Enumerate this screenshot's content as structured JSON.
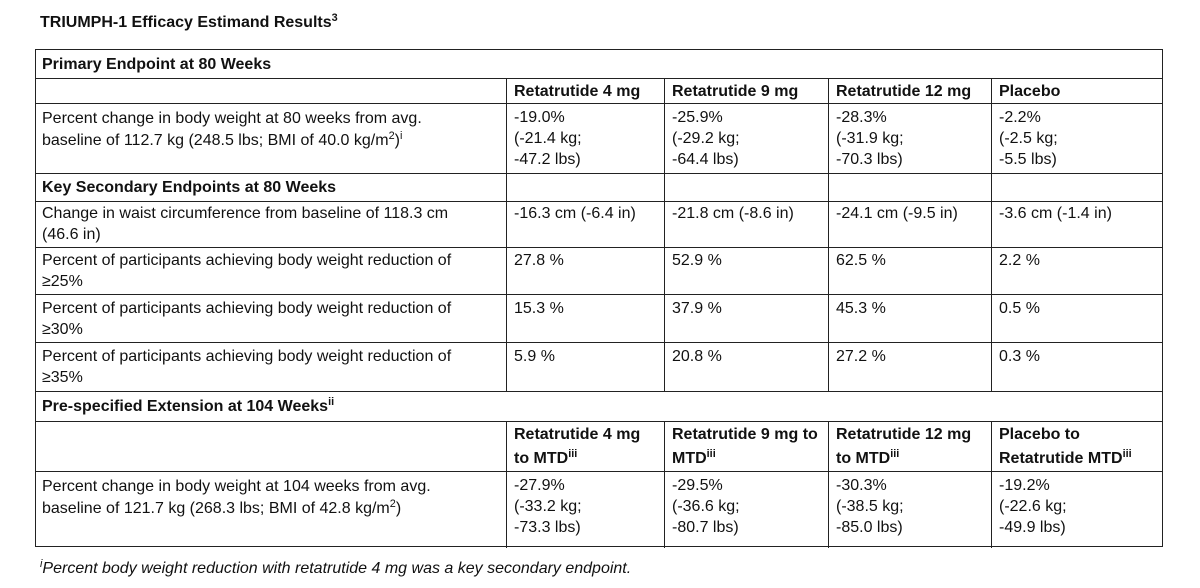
{
  "title": "TRIUMPH-1 Efficacy Estimand Results",
  "title_sup": "3",
  "sections": {
    "primary": "Primary Endpoint at 80 Weeks",
    "secondary": "Key Secondary Endpoints at 80 Weeks",
    "extension": "Pre-specified Extension at 104 Weeks",
    "extension_sup": "ii"
  },
  "columns_80": [
    "Retatrutide 4 mg",
    "Retatrutide 9 mg",
    "Retatrutide 12 mg",
    "Placebo"
  ],
  "columns_104": [
    {
      "line1": "Retatrutide 4 mg",
      "line2": "to MTD",
      "sup": "iii"
    },
    {
      "line1": "Retatrutide 9 mg to",
      "line2": "MTD",
      "sup": "iii"
    },
    {
      "line1": "Retatrutide 12 mg",
      "line2": "to MTD",
      "sup": "iii"
    },
    {
      "line1": "Placebo to",
      "line2": "Retatrutide MTD",
      "sup": "iii"
    }
  ],
  "rows": {
    "primary": {
      "label_l1": "Percent change in body weight at 80 weeks from avg.",
      "label_l2": "baseline of 112.7 kg (248.5 lbs; BMI of 40.0 kg/m",
      "label_sup2": "2",
      "label_close": ")",
      "label_sup": "i",
      "cells": [
        [
          "-19.0%",
          "(-21.4 kg;",
          "-47.2 lbs)"
        ],
        [
          "-25.9%",
          "(-29.2 kg;",
          "-64.4 lbs)"
        ],
        [
          "-28.3%",
          "(-31.9 kg;",
          "-70.3 lbs)"
        ],
        [
          "-2.2%",
          "(-2.5 kg;",
          "-5.5 lbs)"
        ]
      ]
    },
    "waist": {
      "label_l1": "Change in waist circumference from baseline of 118.3 cm",
      "label_l2": "(46.6 in)",
      "cells": [
        "-16.3 cm (-6.4 in)",
        "-21.8 cm (-8.6 in)",
        "-24.1 cm (-9.5 in)",
        "-3.6 cm (-1.4 in)"
      ]
    },
    "r25": {
      "label_l1": "Percent of participants achieving body weight reduction of",
      "label_l2": "≥25%",
      "cells": [
        "27.8 %",
        "52.9 %",
        "62.5 %",
        "2.2 %"
      ]
    },
    "r30": {
      "label_l1": "Percent of participants achieving body weight reduction of",
      "label_l2": "≥30%",
      "cells": [
        "15.3 %",
        "37.9 %",
        "45.3 %",
        "0.5 %"
      ]
    },
    "r35": {
      "label_l1": "Percent of participants achieving body weight reduction of",
      "label_l2": "≥35%",
      "cells": [
        "5.9 %",
        "20.8 %",
        "27.2 %",
        "0.3 %"
      ]
    },
    "ext": {
      "label_l1": "Percent change in body weight at 104 weeks from avg.",
      "label_l2": "baseline of 121.7 kg (268.3 lbs; BMI of 42.8 kg/m",
      "label_sup2": "2",
      "label_close": ")",
      "cells": [
        [
          "-27.9%",
          "(-33.2 kg;",
          "-73.3 lbs)"
        ],
        [
          "-29.5%",
          "(-36.6 kg;",
          "-80.7 lbs)"
        ],
        [
          "-30.3%",
          "(-38.5 kg;",
          "-85.0 lbs)"
        ],
        [
          "-19.2%",
          "(-22.6 kg;",
          "-49.9 lbs)"
        ]
      ]
    }
  },
  "footnote": {
    "sup": "i",
    "text": "Percent body weight reduction with retatrutide 4 mg was a key secondary endpoint."
  }
}
